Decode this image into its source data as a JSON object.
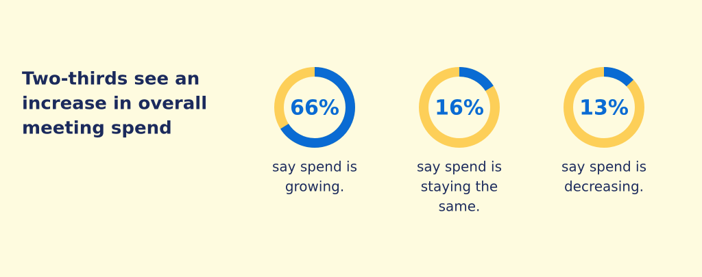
{
  "title_lines": [
    "Two-thirds see an",
    "increase in overall",
    "meeting spend"
  ],
  "chart_data": [
    {
      "type": "donut",
      "values": [
        66
      ],
      "value_labels": [
        "66%"
      ],
      "ylim": [
        0,
        100
      ],
      "color": "#0a6bd3",
      "track_color": "#fdcf58",
      "caption": [
        "say spend is",
        "growing."
      ]
    },
    {
      "type": "donut",
      "values": [
        16
      ],
      "value_labels": [
        "16%"
      ],
      "ylim": [
        0,
        100
      ],
      "color": "#0a6bd3",
      "track_color": "#fdcf58",
      "caption": [
        "say spend is",
        "staying the",
        "same."
      ]
    },
    {
      "type": "donut",
      "values": [
        13
      ],
      "value_labels": [
        "13%"
      ],
      "ylim": [
        0,
        100
      ],
      "color": "#0a6bd3",
      "track_color": "#fdcf58",
      "caption": [
        "say spend is",
        "decreasing."
      ]
    }
  ]
}
